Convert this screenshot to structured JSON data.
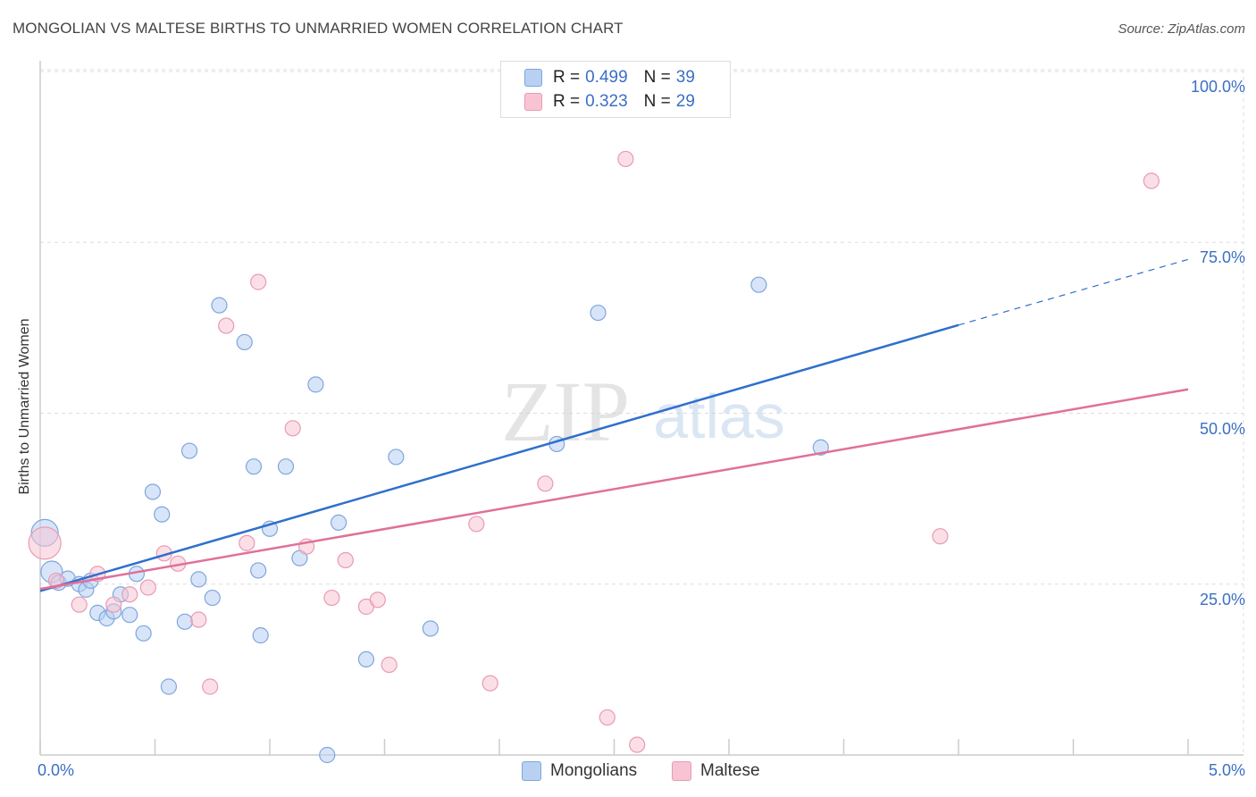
{
  "title": "MONGOLIAN VS MALTESE BIRTHS TO UNMARRIED WOMEN CORRELATION CHART",
  "source": "Source: ZipAtlas.com",
  "watermark": {
    "zip": "ZIP",
    "atlas": "atlas"
  },
  "legend": {
    "r_label": "R =",
    "n_label": "N =",
    "series": [
      {
        "r": "0.499",
        "n": "39"
      },
      {
        "r": "0.323",
        "n": "29"
      }
    ]
  },
  "colors": {
    "blue_fill": "#b8d0f2",
    "blue_stroke": "#7ea6dd",
    "blue_line": "#2f6fcc",
    "pink_fill": "#f8c4d4",
    "pink_stroke": "#e99ab4",
    "pink_line": "#e0709a",
    "axis_text": "#3b6fc4",
    "grid": "#dddddd"
  },
  "chart_data": {
    "type": "scatter",
    "title": "MONGOLIAN VS MALTESE BIRTHS TO UNMARRIED WOMEN CORRELATION CHART",
    "xlabel": "",
    "ylabel": "Births to Unmarried Women",
    "xlim": [
      0,
      5
    ],
    "ylim": [
      0,
      100
    ],
    "x_tick_labels": [
      "0.0%",
      "5.0%"
    ],
    "y_tick_labels": [
      "25.0%",
      "50.0%",
      "75.0%",
      "100.0%"
    ],
    "y_ticks": [
      25,
      50,
      75,
      100
    ],
    "grid": true,
    "legend_position": "top-center",
    "series": [
      {
        "name": "Mongolians",
        "color": "#b8d0f2",
        "r": 0.499,
        "n": 39,
        "trend": {
          "x0": 0,
          "y0": 24.0,
          "x1": 4.0,
          "y1": 62.9,
          "dashed_to_x": 5.0,
          "dashed_to_y": 72.5
        },
        "points": [
          {
            "x": 0.02,
            "y": 32.5,
            "s": 15
          },
          {
            "x": 0.05,
            "y": 26.8,
            "s": 12
          },
          {
            "x": 0.08,
            "y": 25.2
          },
          {
            "x": 0.12,
            "y": 25.8
          },
          {
            "x": 0.17,
            "y": 25.0
          },
          {
            "x": 0.2,
            "y": 24.2
          },
          {
            "x": 0.22,
            "y": 25.5
          },
          {
            "x": 0.25,
            "y": 20.8
          },
          {
            "x": 0.29,
            "y": 20.0
          },
          {
            "x": 0.32,
            "y": 21.0
          },
          {
            "x": 0.35,
            "y": 23.5
          },
          {
            "x": 0.39,
            "y": 20.5
          },
          {
            "x": 0.42,
            "y": 26.5
          },
          {
            "x": 0.45,
            "y": 17.8
          },
          {
            "x": 0.49,
            "y": 38.5
          },
          {
            "x": 0.53,
            "y": 35.2
          },
          {
            "x": 0.56,
            "y": 10.0
          },
          {
            "x": 0.63,
            "y": 19.5
          },
          {
            "x": 0.65,
            "y": 44.5
          },
          {
            "x": 0.69,
            "y": 25.7
          },
          {
            "x": 0.75,
            "y": 23.0
          },
          {
            "x": 0.78,
            "y": 65.8
          },
          {
            "x": 0.89,
            "y": 60.4
          },
          {
            "x": 0.93,
            "y": 42.2
          },
          {
            "x": 0.96,
            "y": 17.5
          },
          {
            "x": 0.95,
            "y": 27.0
          },
          {
            "x": 1.0,
            "y": 33.1
          },
          {
            "x": 1.07,
            "y": 42.2
          },
          {
            "x": 1.13,
            "y": 28.8
          },
          {
            "x": 1.2,
            "y": 54.2
          },
          {
            "x": 1.25,
            "y": 0.0
          },
          {
            "x": 1.3,
            "y": 34.0
          },
          {
            "x": 1.42,
            "y": 14.0
          },
          {
            "x": 1.55,
            "y": 43.6
          },
          {
            "x": 1.7,
            "y": 18.5
          },
          {
            "x": 2.25,
            "y": 45.5
          },
          {
            "x": 2.43,
            "y": 64.7
          },
          {
            "x": 3.13,
            "y": 68.8
          },
          {
            "x": 3.4,
            "y": 45.0
          }
        ]
      },
      {
        "name": "Maltese",
        "color": "#f8c4d4",
        "r": 0.323,
        "n": 29,
        "trend": {
          "x0": 0,
          "y0": 24.3,
          "x1": 5.0,
          "y1": 53.5
        },
        "points": [
          {
            "x": 0.02,
            "y": 31.0,
            "s": 18
          },
          {
            "x": 0.07,
            "y": 25.5
          },
          {
            "x": 0.17,
            "y": 22.0
          },
          {
            "x": 0.25,
            "y": 26.5
          },
          {
            "x": 0.32,
            "y": 22.0
          },
          {
            "x": 0.39,
            "y": 23.5
          },
          {
            "x": 0.47,
            "y": 24.5
          },
          {
            "x": 0.54,
            "y": 29.5
          },
          {
            "x": 0.6,
            "y": 28.0
          },
          {
            "x": 0.69,
            "y": 19.8
          },
          {
            "x": 0.74,
            "y": 10.0
          },
          {
            "x": 0.81,
            "y": 62.8
          },
          {
            "x": 0.95,
            "y": 69.2
          },
          {
            "x": 0.9,
            "y": 31.0
          },
          {
            "x": 1.1,
            "y": 47.8
          },
          {
            "x": 1.16,
            "y": 30.5
          },
          {
            "x": 1.27,
            "y": 23.0
          },
          {
            "x": 1.33,
            "y": 28.5
          },
          {
            "x": 1.42,
            "y": 21.7
          },
          {
            "x": 1.47,
            "y": 22.7
          },
          {
            "x": 1.52,
            "y": 13.2
          },
          {
            "x": 1.9,
            "y": 33.8
          },
          {
            "x": 1.96,
            "y": 10.5
          },
          {
            "x": 2.2,
            "y": 39.7
          },
          {
            "x": 2.47,
            "y": 5.5
          },
          {
            "x": 2.55,
            "y": 87.2
          },
          {
            "x": 2.6,
            "y": 1.5
          },
          {
            "x": 3.92,
            "y": 32.0
          },
          {
            "x": 4.84,
            "y": 84.0
          }
        ]
      }
    ]
  }
}
